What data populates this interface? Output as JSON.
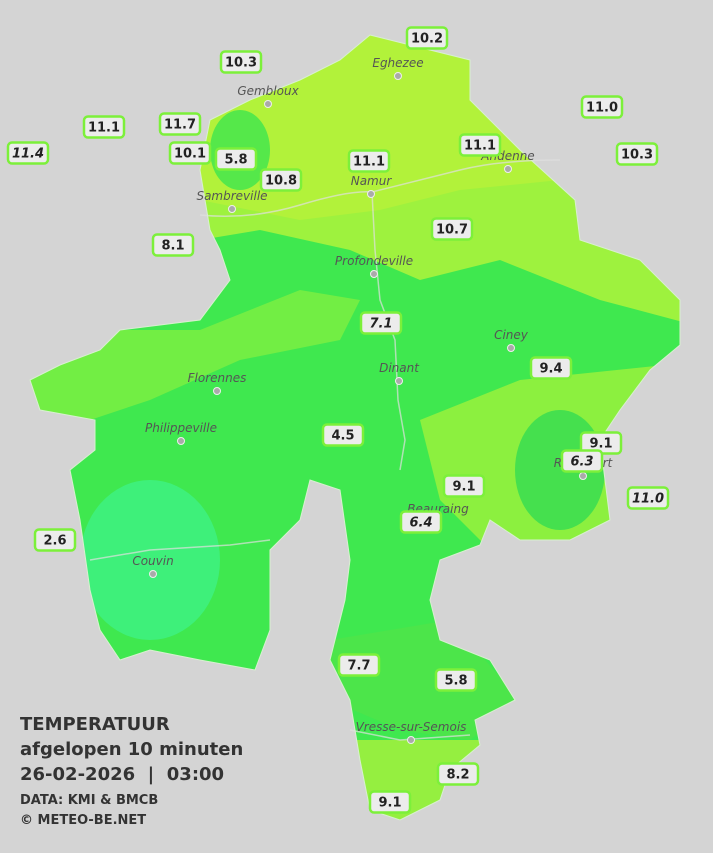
{
  "title": {
    "line1": "TEMPERATUUR",
    "line2": "afgelopen 10 minuten",
    "line3": "26-02-2026  |  03:00",
    "source": "DATA: KMI & BMCB",
    "copyright": "© METEO-BE.NET"
  },
  "towns": [
    "Eghezee",
    "Gembloux",
    "Andenne",
    "Namur",
    "Sambreville",
    "Profondeville",
    "Ciney",
    "Dinant",
    "Florennes",
    "Philippeville",
    "Rochefort",
    "Beauraing",
    "Couvin",
    "Vresse-sur-Semois"
  ],
  "stations": [
    {
      "label": "10.2"
    },
    {
      "label": "10.3"
    },
    {
      "label": "11.1"
    },
    {
      "label": "11.4",
      "style": "italic"
    },
    {
      "label": "11.7"
    },
    {
      "label": "10.1"
    },
    {
      "label": "5.8"
    },
    {
      "label": "10.8"
    },
    {
      "label": "11.1"
    },
    {
      "label": "11.1"
    },
    {
      "label": "11.0"
    },
    {
      "label": "10.3"
    },
    {
      "label": "8.1"
    },
    {
      "label": "10.7"
    },
    {
      "label": "7.1",
      "style": "italic"
    },
    {
      "label": "9.4"
    },
    {
      "label": "4.5"
    },
    {
      "label": "9.1"
    },
    {
      "label": "6.3",
      "style": "italic"
    },
    {
      "label": "11.0",
      "style": "italic"
    },
    {
      "label": "9.1"
    },
    {
      "label": "6.4",
      "style": "italic"
    },
    {
      "label": "2.6"
    },
    {
      "label": "7.7"
    },
    {
      "label": "5.8"
    },
    {
      "label": "8.2"
    },
    {
      "label": "9.1"
    }
  ]
}
